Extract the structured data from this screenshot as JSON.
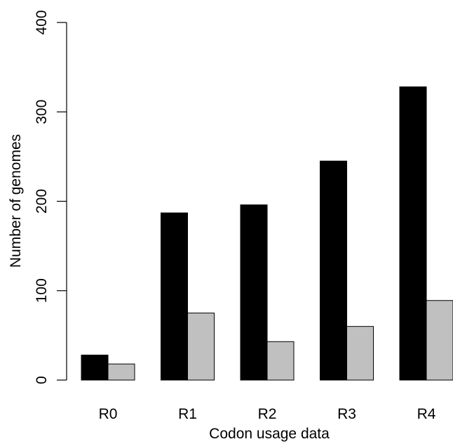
{
  "chart_data": {
    "type": "bar",
    "title": "",
    "xlabel": "Codon usage data",
    "ylabel": "Number of genomes",
    "categories": [
      "R0",
      "R1",
      "R2",
      "R3",
      "R4"
    ],
    "series": [
      {
        "values": [
          28,
          187,
          196,
          245,
          328
        ],
        "color": "#000000"
      },
      {
        "values": [
          18,
          75,
          43,
          60,
          89
        ],
        "color": "#c0c0c0"
      }
    ],
    "ylim": [
      0,
      400
    ],
    "yticks": [
      0,
      100,
      200,
      300,
      400
    ],
    "grid": false,
    "legend": "none"
  }
}
